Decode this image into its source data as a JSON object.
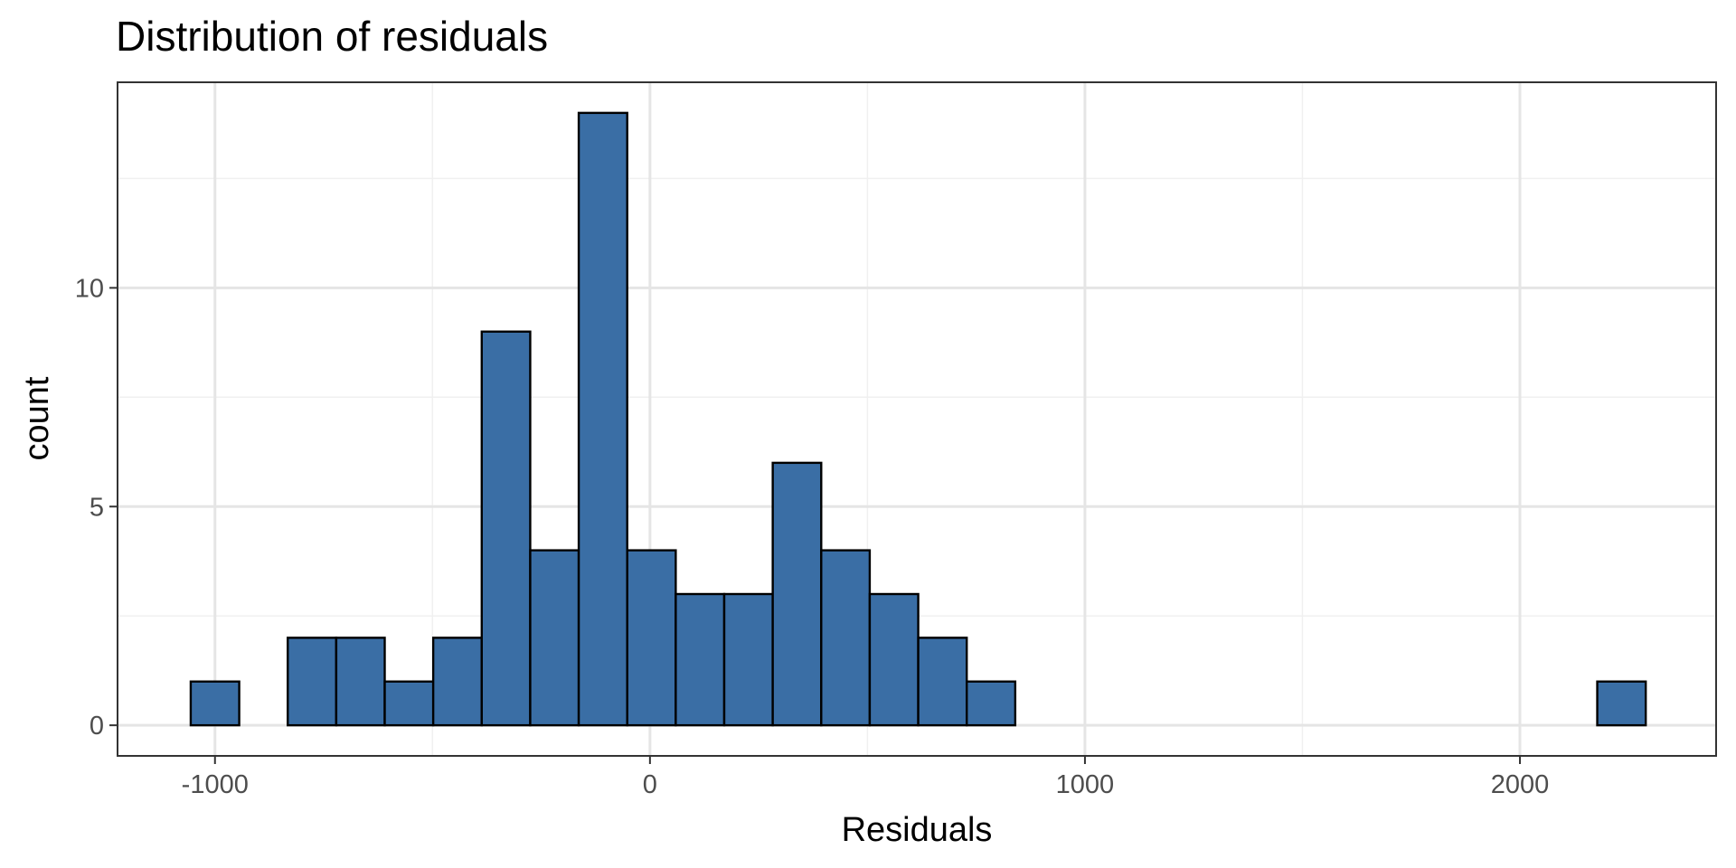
{
  "chart_data": {
    "type": "bar",
    "title": "Distribution of residuals",
    "xlabel": "Residuals",
    "ylabel": "count",
    "bin_width": 111.5,
    "bins": [
      {
        "center": -1000,
        "count": 1
      },
      {
        "center": -888.5,
        "count": 0
      },
      {
        "center": -777,
        "count": 2
      },
      {
        "center": -665.5,
        "count": 2
      },
      {
        "center": -554,
        "count": 1
      },
      {
        "center": -442.5,
        "count": 2
      },
      {
        "center": -331,
        "count": 9
      },
      {
        "center": -219.5,
        "count": 4
      },
      {
        "center": -108,
        "count": 14
      },
      {
        "center": 3.5,
        "count": 4
      },
      {
        "center": 115,
        "count": 3
      },
      {
        "center": 226.5,
        "count": 3
      },
      {
        "center": 338,
        "count": 6
      },
      {
        "center": 449.5,
        "count": 4
      },
      {
        "center": 561,
        "count": 3
      },
      {
        "center": 672.5,
        "count": 2
      },
      {
        "center": 784,
        "count": 1
      },
      {
        "center": 895.5,
        "count": 0
      },
      {
        "center": 1007,
        "count": 0
      },
      {
        "center": 1118.5,
        "count": 0
      },
      {
        "center": 1230,
        "count": 0
      },
      {
        "center": 1341.5,
        "count": 0
      },
      {
        "center": 1453,
        "count": 0
      },
      {
        "center": 1564.5,
        "count": 0
      },
      {
        "center": 1676,
        "count": 0
      },
      {
        "center": 1787.5,
        "count": 0
      },
      {
        "center": 1899,
        "count": 0
      },
      {
        "center": 2010.5,
        "count": 0
      },
      {
        "center": 2122,
        "count": 0
      },
      {
        "center": 2233.5,
        "count": 1
      }
    ],
    "xlim": [
      -1224,
      2451
    ],
    "ylim": [
      -0.7,
      14.7
    ],
    "x_ticks": [
      -1000,
      0,
      1000,
      2000
    ],
    "x_tick_labels": [
      "-1000",
      "0",
      "1000",
      "2000"
    ],
    "x_minor": [
      -500,
      500,
      1500
    ],
    "y_ticks": [
      0,
      5,
      10
    ],
    "y_tick_labels": [
      "0",
      "5",
      "10"
    ],
    "y_minor": [
      2.5,
      7.5,
      12.5
    ],
    "grid": true,
    "legend": "none",
    "colors": {
      "bar_fill": "#3a6ea5",
      "bar_outline": "#000000",
      "panel_border": "#333333"
    }
  }
}
